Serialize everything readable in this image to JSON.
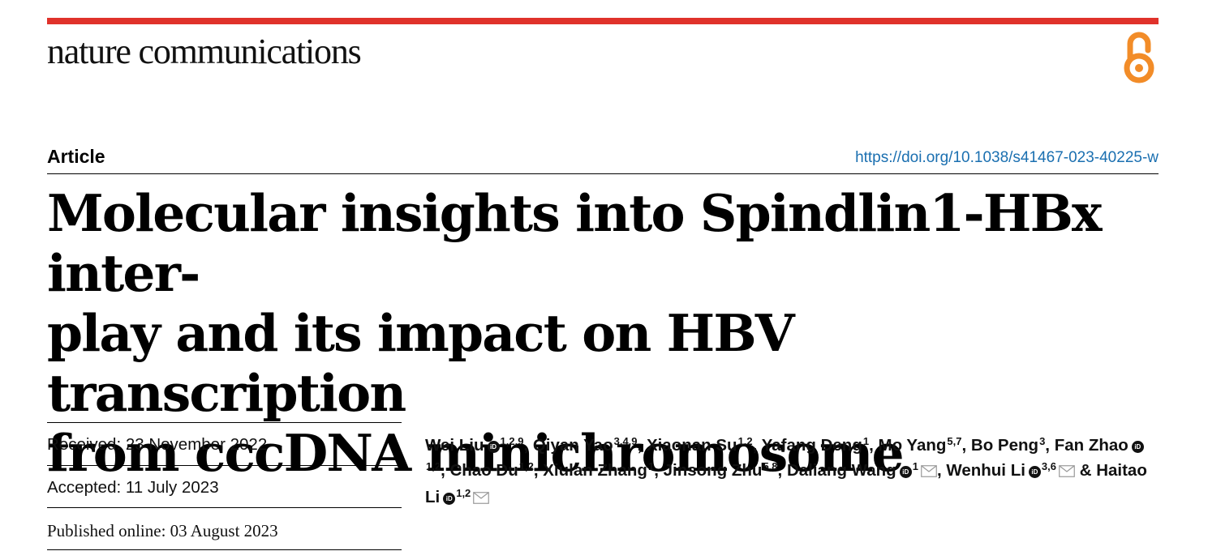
{
  "colors": {
    "accent_red": "#e0322b",
    "oa_orange": "#f28c28",
    "doi_blue": "#1a6fb0"
  },
  "header": {
    "journal": "nature communications",
    "open_access_icon": "open-access-icon"
  },
  "article": {
    "type": "Article",
    "doi": "https://doi.org/10.1038/s41467-023-40225-w",
    "title_lines": [
      "Molecular insights into Spindlin1-HBx inter-",
      "play and its impact on HBV transcription",
      "from cccDNA minichromosome"
    ]
  },
  "dates": {
    "received": "Received: 23 November 2022",
    "accepted": "Accepted: 11 July 2023",
    "published": "Published online: 03 August 2023"
  },
  "authors": [
    {
      "name": "Wei Liu",
      "orcid": true,
      "aff": "1,2,9",
      "mail": false,
      "sep": ", "
    },
    {
      "name": "Qiyan Yao",
      "orcid": false,
      "aff": "3,4,9",
      "mail": false,
      "sep": ", "
    },
    {
      "name": "Xiaonan Su",
      "orcid": false,
      "aff": "1,2",
      "mail": false,
      "sep": ", "
    },
    {
      "name": "Yafang Deng",
      "orcid": false,
      "aff": "1",
      "mail": false,
      "sep": ", "
    },
    {
      "name": "Mo Yang",
      "orcid": false,
      "aff": "5,7",
      "mail": false,
      "sep": ", "
    },
    {
      "name": "Bo Peng",
      "orcid": false,
      "aff": "3",
      "mail": false,
      "sep": ", "
    },
    {
      "name": "Fan Zhao",
      "orcid": true,
      "aff": "1,2",
      "mail": false,
      "sep": ", "
    },
    {
      "name": "Chao Du",
      "orcid": false,
      "aff": "1,2",
      "mail": false,
      "sep": ", "
    },
    {
      "name": "Xiulan Zhang",
      "orcid": false,
      "aff": "1",
      "mail": false,
      "sep": ", "
    },
    {
      "name": "Jinsong Zhu",
      "orcid": false,
      "aff": "5,8",
      "mail": false,
      "sep": ", "
    },
    {
      "name": "Daliang Wang",
      "orcid": true,
      "aff": "1",
      "mail": true,
      "sep": ", "
    },
    {
      "name": "Wenhui Li",
      "orcid": true,
      "aff": "3,6",
      "mail": true,
      "sep": " & "
    },
    {
      "name": "Haitao Li",
      "orcid": true,
      "aff": "1,2",
      "mail": true,
      "sep": ""
    }
  ]
}
